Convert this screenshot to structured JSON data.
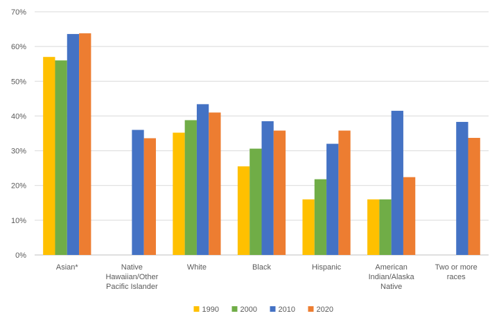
{
  "chart_data": {
    "type": "bar",
    "title": "",
    "xlabel": "",
    "ylabel": "",
    "ylim": [
      0,
      70
    ],
    "yticks": [
      "0%",
      "10%",
      "20%",
      "30%",
      "40%",
      "50%",
      "60%",
      "70%"
    ],
    "grid": true,
    "legend_position": "bottom",
    "categories": [
      [
        "Asian*"
      ],
      [
        "Native",
        "Hawaiian/Other",
        "Pacific Islander"
      ],
      [
        "White"
      ],
      [
        "Black"
      ],
      [
        "Hispanic"
      ],
      [
        "American",
        "Indian/Alaska",
        "Native"
      ],
      [
        "Two or more",
        "races"
      ]
    ],
    "series": [
      {
        "name": "1990",
        "color": "#FFC000",
        "values": [
          57,
          null,
          35.2,
          25.5,
          16,
          16,
          null
        ]
      },
      {
        "name": "2000",
        "color": "#70AD47",
        "values": [
          56,
          null,
          38.8,
          30.6,
          21.8,
          16,
          null
        ]
      },
      {
        "name": "2010",
        "color": "#4472C4",
        "values": [
          63.6,
          36,
          43.4,
          38.5,
          32,
          41.5,
          38.3
        ]
      },
      {
        "name": "2020",
        "color": "#ED7D31",
        "values": [
          63.8,
          33.6,
          41,
          35.8,
          35.8,
          22.4,
          33.7
        ]
      }
    ]
  }
}
